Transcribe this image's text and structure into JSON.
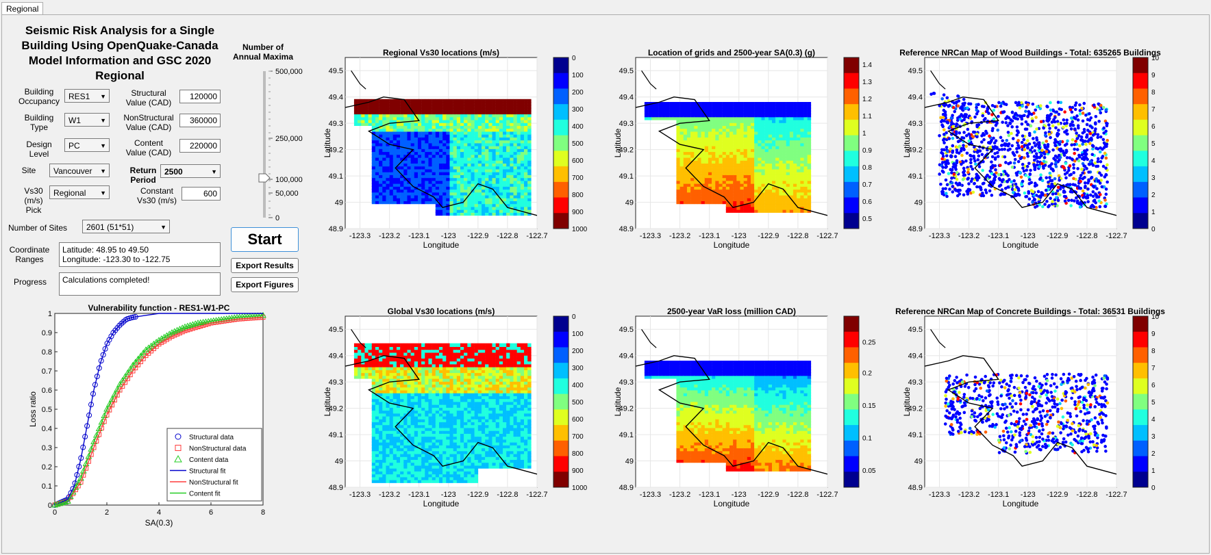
{
  "tab": {
    "label": "Regional"
  },
  "title": {
    "line1": "Seismic Risk Analysis for a Single",
    "line2": "Building Using OpenQuake-Canada",
    "line3": "Model Information and GSC 2020",
    "line4": "Regional"
  },
  "form": {
    "occupancy": {
      "label1": "Building",
      "label2": "Occupancy",
      "value": "RES1"
    },
    "type": {
      "label1": "Building",
      "label2": "Type",
      "value": "W1"
    },
    "design": {
      "label1": "Design",
      "label2": "Level",
      "value": "PC"
    },
    "site": {
      "label": "Site",
      "value": "Vancouver"
    },
    "vs30pick": {
      "label1": "Vs30",
      "label2": "(m/s) Pick",
      "value": "Regional"
    },
    "structural": {
      "label1": "Structural",
      "label2": "Value (CAD)",
      "value": "120000"
    },
    "nonstructural": {
      "label1": "NonStructural",
      "label2": "Value (CAD)",
      "value": "360000"
    },
    "content": {
      "label1": "Content",
      "label2": "Value (CAD)",
      "value": "220000"
    },
    "returnperiod": {
      "label1": "Return",
      "label2": "Period",
      "value": "2500"
    },
    "constvs30": {
      "label1": "Constant",
      "label2": "Vs30 (m/s)",
      "value": "600"
    },
    "numsites": {
      "label": "Number of Sites",
      "value": "2601 (51*51)"
    },
    "coord": {
      "label1": "Coordinate",
      "label2": "Ranges",
      "line1": "Latitude: 48.95 to 49.50",
      "line2": "Longitude: -123.30 to -122.75"
    },
    "progress": {
      "label": "Progress",
      "value": "Calculations completed!"
    }
  },
  "slider": {
    "label1": "Number of",
    "label2": "Annual Maxima",
    "ticks": [
      "500,000",
      "250,000",
      "100,000",
      "50,000",
      "0"
    ],
    "value": 100000,
    "max": 500000
  },
  "buttons": {
    "start": "Start",
    "export_results": "Export Results",
    "export_figures": "Export Figures"
  },
  "colors": {
    "structural": "#0000cc",
    "nonstructural": "#ff3b3b",
    "content": "#22cc22"
  },
  "maps": {
    "xticks": [
      "-123.3",
      "-123.2",
      "-123.1",
      "-123",
      "-122.9",
      "-122.8",
      "-122.7"
    ],
    "yticks": [
      "49.5",
      "49.4",
      "49.3",
      "49.2",
      "49.1",
      "49",
      "48.9"
    ],
    "xlabel": "Longitude",
    "ylabel": "Latitude",
    "m1": {
      "title": "Regional Vs30 locations (m/s)",
      "cbar": [
        "0",
        "100",
        "200",
        "300",
        "400",
        "500",
        "600",
        "700",
        "800",
        "900",
        "1000"
      ]
    },
    "m2": {
      "title": "Location of grids and 2500-year SA(0.3) (g)",
      "cbar": [
        "1.4",
        "1.3",
        "1.2",
        "1.1",
        "1",
        "0.9",
        "0.8",
        "0.7",
        "0.6",
        "0.5"
      ]
    },
    "m3": {
      "title": "Reference NRCan Map of Wood Buildings - Total: 635265 Buildings",
      "cbar": [
        "10",
        "9",
        "8",
        "7",
        "6",
        "5",
        "4",
        "3",
        "2",
        "1",
        "0"
      ]
    },
    "m4": {
      "title": "Global Vs30 locations (m/s)",
      "cbar": [
        "0",
        "100",
        "200",
        "300",
        "400",
        "500",
        "600",
        "700",
        "800",
        "900",
        "1000"
      ]
    },
    "m5": {
      "title": "2500-year VaR loss (million CAD)",
      "cbar": [
        "0.25",
        "0.2",
        "0.15",
        "0.1",
        "0.05"
      ]
    },
    "m6": {
      "title": "Reference NRCan Map of Concrete Buildings - Total: 36531 Buildings",
      "cbar": [
        "10",
        "9",
        "8",
        "7",
        "6",
        "5",
        "4",
        "3",
        "2",
        "1",
        "0"
      ]
    }
  },
  "chart_data": {
    "type": "line",
    "title": "Vulnerability function - RES1-W1-PC",
    "xlabel": "SA(0.3)",
    "ylabel": "Loss ratio",
    "xlim": [
      0,
      8
    ],
    "ylim": [
      0,
      1
    ],
    "xticks": [
      "0",
      "2",
      "4",
      "6",
      "8"
    ],
    "yticks": [
      "0",
      "0.1",
      "0.2",
      "0.3",
      "0.4",
      "0.5",
      "0.6",
      "0.7",
      "0.8",
      "0.9",
      "1"
    ],
    "legend_position": "bottom-right",
    "legend": [
      "Structural data",
      "NonStructural data",
      "Content data",
      "Structural fit",
      "NonStructural fit",
      "Content fit"
    ],
    "series": [
      {
        "name": "Structural fit",
        "x": [
          0,
          0.5,
          0.75,
          1,
          1.25,
          1.5,
          1.75,
          2,
          2.25,
          2.5,
          2.75,
          3,
          3.5,
          4,
          5,
          6,
          8
        ],
        "y": [
          0,
          0.03,
          0.1,
          0.24,
          0.42,
          0.6,
          0.74,
          0.84,
          0.9,
          0.94,
          0.97,
          0.98,
          0.99,
          1,
          1,
          1,
          1
        ]
      },
      {
        "name": "NonStructural fit",
        "x": [
          0,
          0.5,
          1,
          1.5,
          2,
          2.5,
          3,
          3.5,
          4,
          4.5,
          5,
          5.5,
          6,
          6.5,
          7,
          8
        ],
        "y": [
          0,
          0.02,
          0.12,
          0.3,
          0.47,
          0.6,
          0.7,
          0.78,
          0.84,
          0.88,
          0.91,
          0.93,
          0.95,
          0.96,
          0.97,
          0.98
        ]
      },
      {
        "name": "Content fit",
        "x": [
          0,
          0.5,
          1,
          1.5,
          2,
          2.5,
          3,
          3.5,
          4,
          4.5,
          5,
          5.5,
          6,
          6.5,
          7,
          8
        ],
        "y": [
          0,
          0.02,
          0.14,
          0.33,
          0.5,
          0.63,
          0.73,
          0.81,
          0.86,
          0.9,
          0.93,
          0.95,
          0.96,
          0.97,
          0.98,
          0.99
        ]
      }
    ]
  }
}
